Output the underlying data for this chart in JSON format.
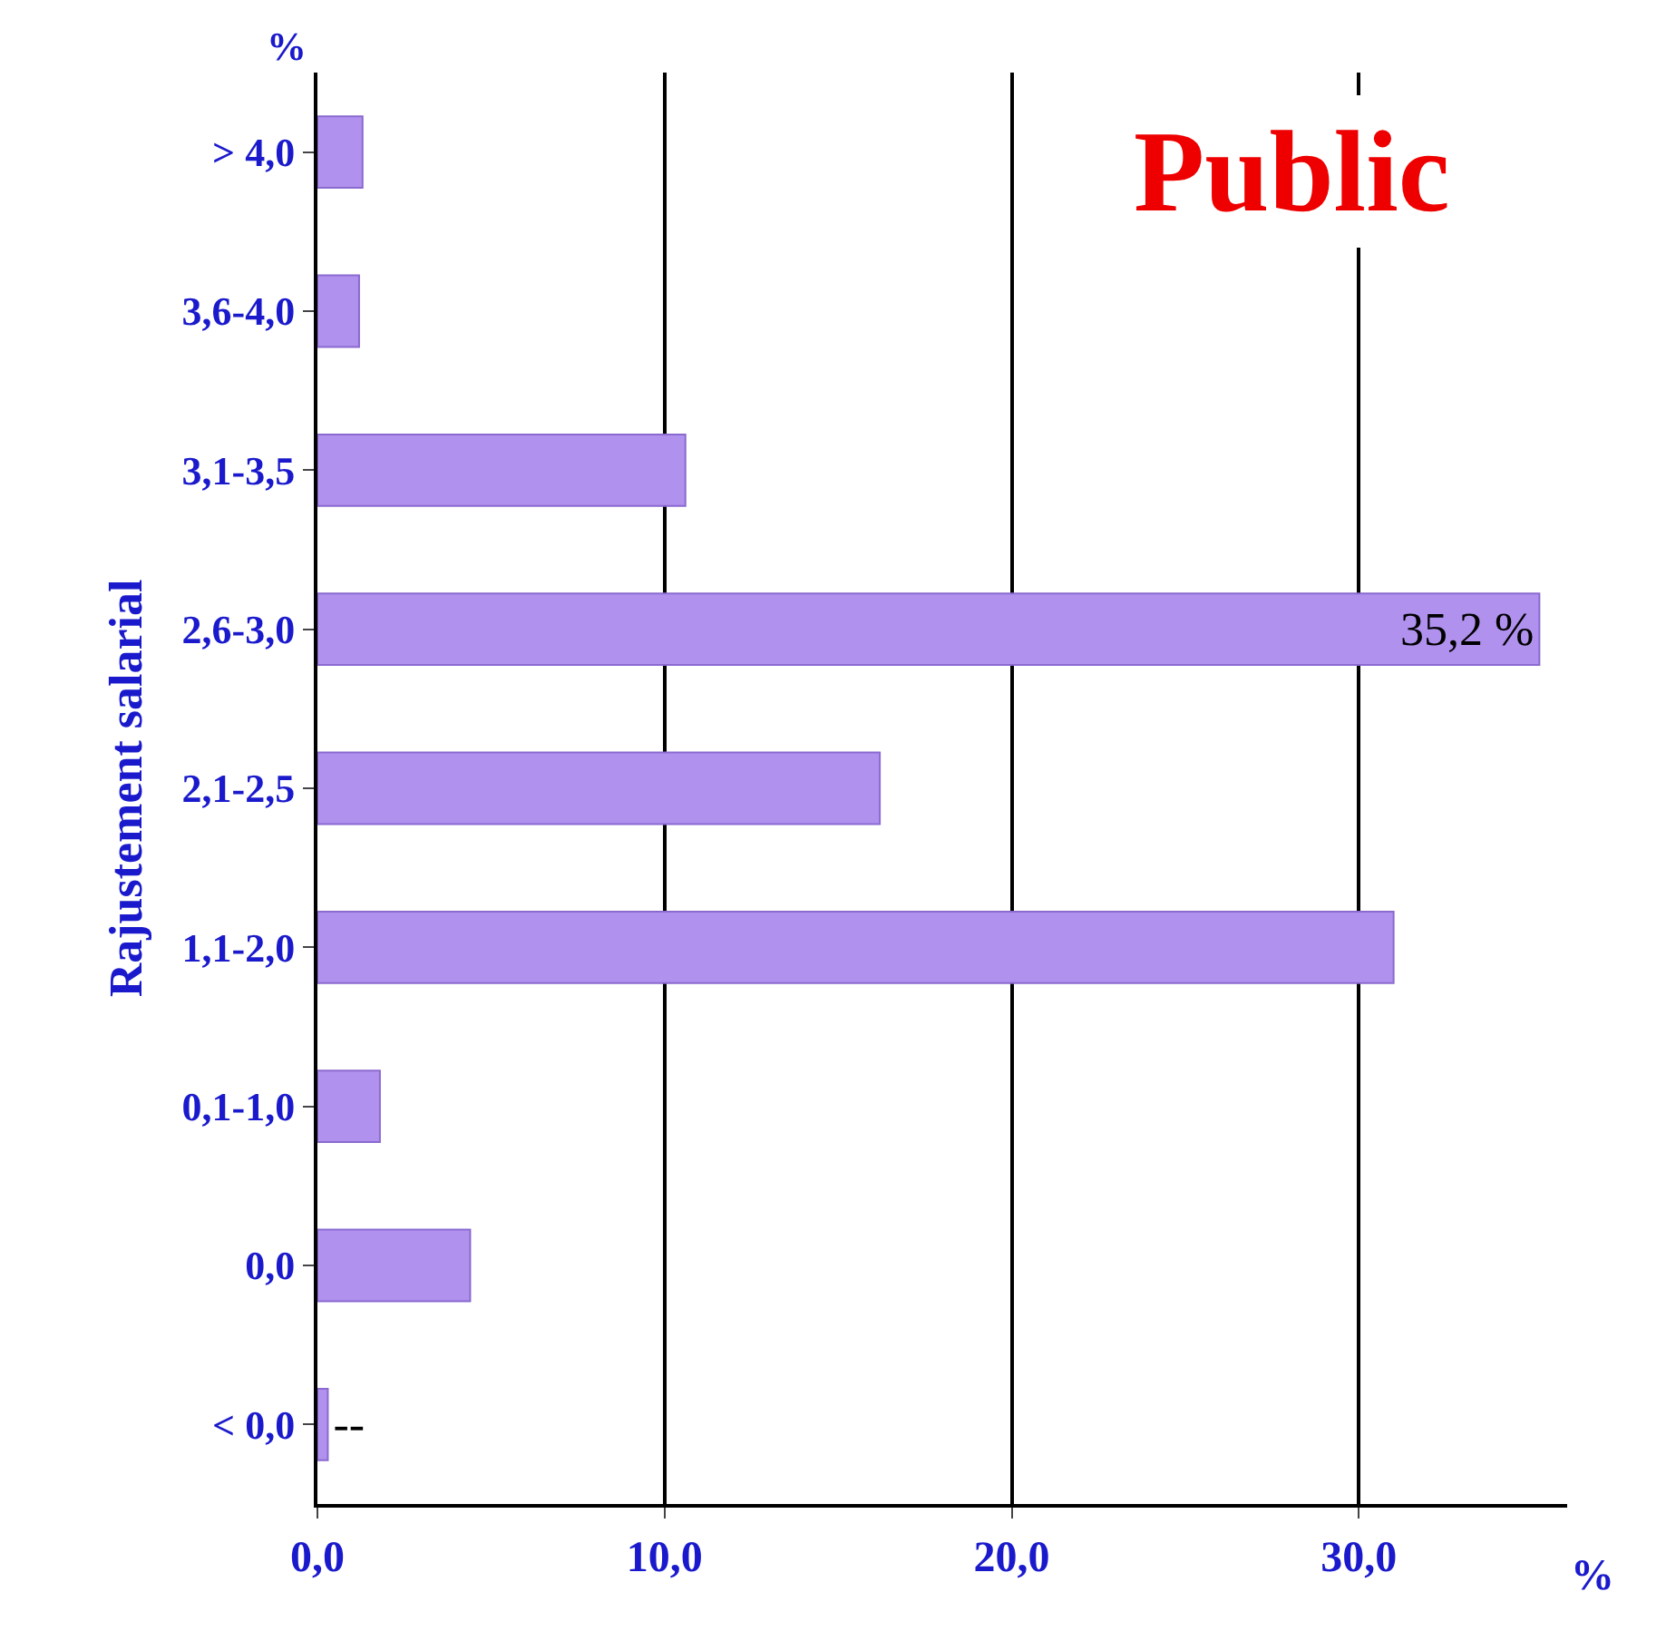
{
  "chart_data": {
    "type": "bar",
    "orientation": "horizontal",
    "title": "Public",
    "ylabel": "Rajustement salarial",
    "xlabel": "%",
    "annotations": [
      "%"
    ],
    "categories": [
      "> 4,0",
      "3,6-4,0",
      "3,1-3,5",
      "2,6-3,0",
      "2,1-2,5",
      "1,1-2,0",
      "0,1-1,0",
      "0,0",
      "< 0,0"
    ],
    "values": [
      1.3,
      1.2,
      10.6,
      35.2,
      16.2,
      31.0,
      1.8,
      4.4,
      0.3
    ],
    "value_labels": [
      null,
      null,
      null,
      "35,2 %",
      null,
      null,
      null,
      null,
      "--"
    ],
    "color": "#b191ee",
    "xlim": [
      0,
      36
    ],
    "xticks": [
      {
        "value": 0,
        "label": "0,0"
      },
      {
        "value": 10,
        "label": "10,0"
      },
      {
        "value": 20,
        "label": "20,0"
      },
      {
        "value": 30,
        "label": "30,0"
      }
    ],
    "grid": "x",
    "legend": false
  }
}
